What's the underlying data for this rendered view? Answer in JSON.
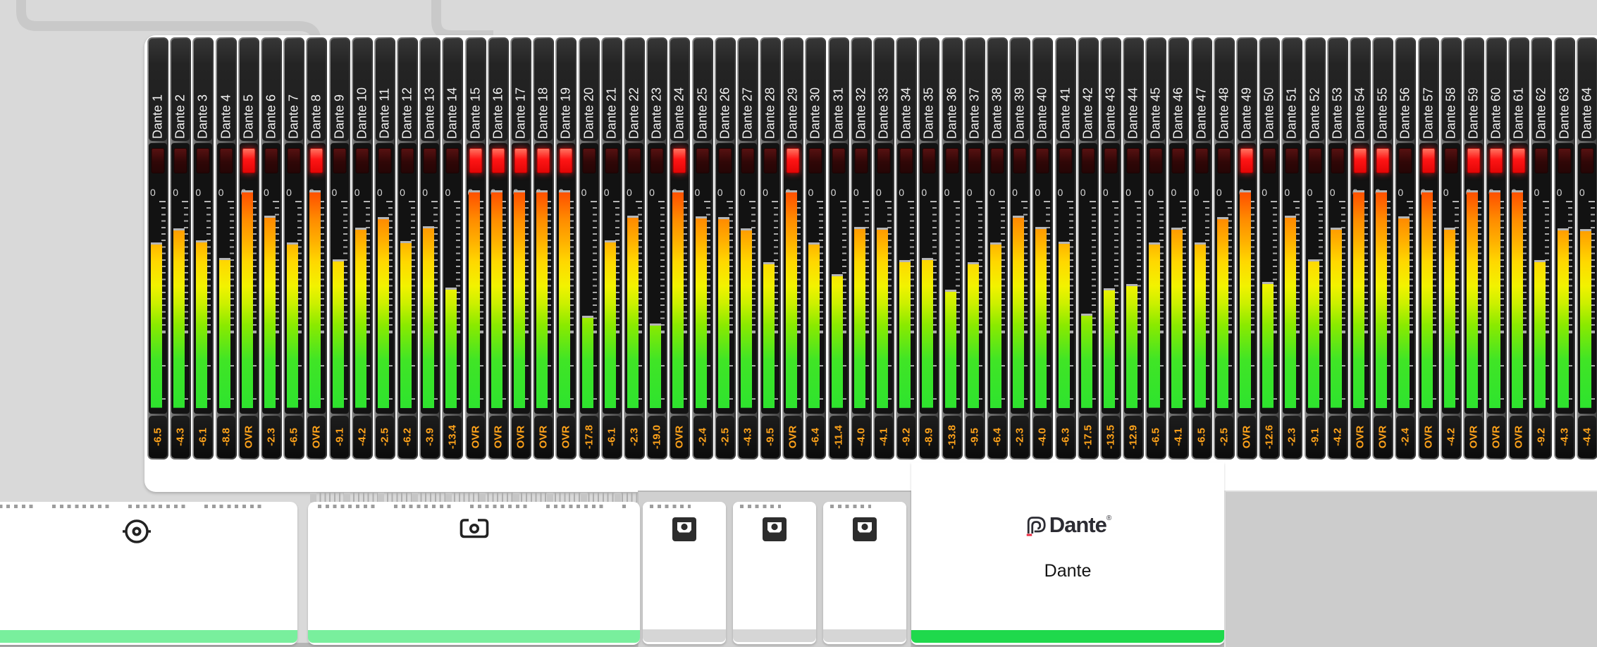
{
  "meter_bridge": {
    "zero_label": "0",
    "overload_text": "OVR",
    "colors": {
      "value_text": "#ffa31a",
      "label_text": "#f2f2f2",
      "clip_on": "#ff1515",
      "clip_off": "#300707",
      "bar_gradient_bottom": "#2ee32e",
      "bar_gradient_mid": "#f2f200",
      "bar_gradient_top": "#ff4e00",
      "peak_cap": "#b5b5b5"
    },
    "channels": [
      {
        "label": "Dante 1",
        "value": "-6.5"
      },
      {
        "label": "Dante 2",
        "value": "-4.3"
      },
      {
        "label": "Dante 3",
        "value": "-6.1"
      },
      {
        "label": "Dante 4",
        "value": "-8.8"
      },
      {
        "label": "Dante 5",
        "value": "OVR"
      },
      {
        "label": "Dante 6",
        "value": "-2.3"
      },
      {
        "label": "Dante 7",
        "value": "-6.5"
      },
      {
        "label": "Dante 8",
        "value": "OVR"
      },
      {
        "label": "Dante 9",
        "value": "-9.1"
      },
      {
        "label": "Dante 10",
        "value": "-4.2"
      },
      {
        "label": "Dante 11",
        "value": "-2.5"
      },
      {
        "label": "Dante 12",
        "value": "-6.2"
      },
      {
        "label": "Dante 13",
        "value": "-3.9"
      },
      {
        "label": "Dante 14",
        "value": "-13.4"
      },
      {
        "label": "Dante 15",
        "value": "OVR"
      },
      {
        "label": "Dante 16",
        "value": "OVR"
      },
      {
        "label": "Dante 17",
        "value": "OVR"
      },
      {
        "label": "Dante 18",
        "value": "OVR"
      },
      {
        "label": "Dante 19",
        "value": "OVR"
      },
      {
        "label": "Dante 20",
        "value": "-17.8"
      },
      {
        "label": "Dante 21",
        "value": "-6.1"
      },
      {
        "label": "Dante 22",
        "value": "-2.3"
      },
      {
        "label": "Dante 23",
        "value": "-19.0"
      },
      {
        "label": "Dante 24",
        "value": "OVR"
      },
      {
        "label": "Dante 25",
        "value": "-2.4"
      },
      {
        "label": "Dante 26",
        "value": "-2.5"
      },
      {
        "label": "Dante 27",
        "value": "-4.3"
      },
      {
        "label": "Dante 28",
        "value": "-9.5"
      },
      {
        "label": "Dante 29",
        "value": "OVR"
      },
      {
        "label": "Dante 30",
        "value": "-6.4"
      },
      {
        "label": "Dante 31",
        "value": "-11.4"
      },
      {
        "label": "Dante 32",
        "value": "-4.0"
      },
      {
        "label": "Dante 33",
        "value": "-4.1"
      },
      {
        "label": "Dante 34",
        "value": "-9.2"
      },
      {
        "label": "Dante 35",
        "value": "-8.9"
      },
      {
        "label": "Dante 36",
        "value": "-13.8"
      },
      {
        "label": "Dante 37",
        "value": "-9.5"
      },
      {
        "label": "Dante 38",
        "value": "-6.4"
      },
      {
        "label": "Dante 39",
        "value": "-2.3"
      },
      {
        "label": "Dante 40",
        "value": "-4.0"
      },
      {
        "label": "Dante 41",
        "value": "-6.3"
      },
      {
        "label": "Dante 42",
        "value": "-17.5"
      },
      {
        "label": "Dante 43",
        "value": "-13.5"
      },
      {
        "label": "Dante 44",
        "value": "-12.9"
      },
      {
        "label": "Dante 45",
        "value": "-6.5"
      },
      {
        "label": "Dante 46",
        "value": "-4.1"
      },
      {
        "label": "Dante 47",
        "value": "-6.5"
      },
      {
        "label": "Dante 48",
        "value": "-2.5"
      },
      {
        "label": "Dante 49",
        "value": "OVR"
      },
      {
        "label": "Dante 50",
        "value": "-12.6"
      },
      {
        "label": "Dante 51",
        "value": "-2.3"
      },
      {
        "label": "Dante 52",
        "value": "-9.1"
      },
      {
        "label": "Dante 53",
        "value": "-4.2"
      },
      {
        "label": "Dante 54",
        "value": "OVR"
      },
      {
        "label": "Dante 55",
        "value": "OVR"
      },
      {
        "label": "Dante 56",
        "value": "-2.4"
      },
      {
        "label": "Dante 57",
        "value": "OVR"
      },
      {
        "label": "Dante 58",
        "value": "-4.2"
      },
      {
        "label": "Dante 59",
        "value": "OVR"
      },
      {
        "label": "Dante 60",
        "value": "OVR"
      },
      {
        "label": "Dante 61",
        "value": "OVR"
      },
      {
        "label": "Dante 62",
        "value": "-9.2"
      },
      {
        "label": "Dante 63",
        "value": "-4.3"
      },
      {
        "label": "Dante 64",
        "value": "-4.4"
      }
    ]
  },
  "io_panels": {
    "wordclock_panel": {
      "icon": "bnc-connector-icon",
      "status_color": "#79ef9d"
    },
    "camera_panel": {
      "icon": "camera-connector-icon",
      "status_color": "#79ef9d"
    },
    "optical_panels": [
      {
        "icon": "toslink-icon",
        "status_color": "#d6d6d6"
      },
      {
        "icon": "toslink-icon",
        "status_color": "#d6d6d6"
      },
      {
        "icon": "toslink-icon",
        "status_color": "#d6d6d6"
      }
    ],
    "dante_panel": {
      "logo_text": "Dante",
      "registered_mark": "®",
      "subtitle": "Dante",
      "status_color": "#1fd94c",
      "logo_color": "#2c2c33",
      "logo_accent": "#e8283f"
    }
  }
}
